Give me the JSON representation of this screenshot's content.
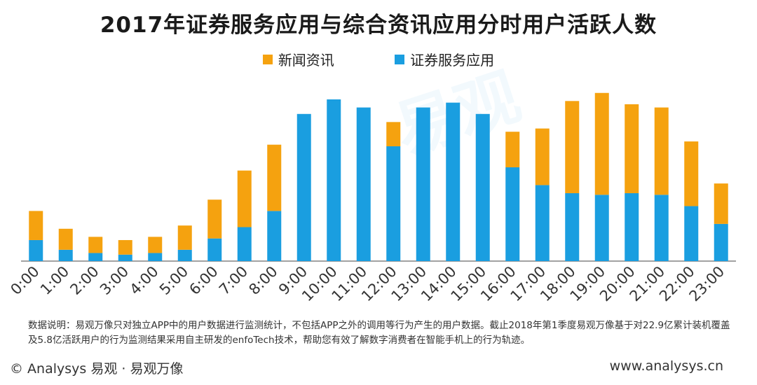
{
  "title": "2017年证券服务应用与综合资讯应用分时用户活跃人数",
  "legend": {
    "news_label": "新闻资讯",
    "securities_label": "证券服务应用"
  },
  "colors": {
    "news": "#F5A20F",
    "securities": "#1A9EE0"
  },
  "note": "数据说明：易观万像只对独立APP中的用户数据进行监测统计，不包括APP之外的调用等行为产生的用户数据。截止2018年第1季度易观万像基于对22.9亿累计装机覆盖及5.8亿活跃用户的行为监测结果采用自主研发的enfoTech技术，帮助您有效了解数字消费者在智能手机上的行为轨迹。",
  "footer": {
    "left": "© Analysys 易观 · 易观万像",
    "right": "www.analysys.cn"
  },
  "watermark": "易观",
  "chart_data": {
    "type": "bar",
    "stacked": true,
    "title": "2017年证券服务应用与综合资讯应用分时用户活跃人数",
    "xlabel": "",
    "ylabel": "",
    "ylim": [
      0,
      100
    ],
    "categories": [
      "0:00",
      "1:00",
      "2:00",
      "3:00",
      "4:00",
      "5:00",
      "6:00",
      "7:00",
      "8:00",
      "9:00",
      "10:00",
      "11:00",
      "12:00",
      "13:00",
      "14:00",
      "15:00",
      "16:00",
      "17:00",
      "18:00",
      "19:00",
      "20:00",
      "21:00",
      "22:00",
      "23:00"
    ],
    "series": [
      {
        "name": "证券服务应用",
        "values": [
          13,
          7,
          5,
          4,
          5,
          7,
          14,
          21,
          31,
          91,
          100,
          95,
          71,
          95,
          98,
          91,
          58,
          47,
          42,
          41,
          42,
          41,
          34,
          23
        ]
      },
      {
        "name": "新闻资讯",
        "values": [
          18,
          13,
          10,
          9,
          10,
          15,
          24,
          35,
          41,
          0,
          0,
          0,
          15,
          0,
          0,
          0,
          22,
          35,
          57,
          63,
          55,
          54,
          40,
          25
        ]
      }
    ]
  }
}
